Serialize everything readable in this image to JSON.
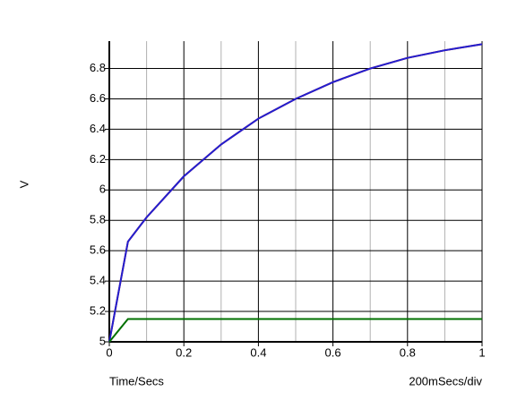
{
  "chart_data": {
    "type": "line",
    "x_label": "Time/Secs",
    "x_scale_label": "200mSecs/div",
    "y_label": "V",
    "x": [
      0,
      0.05,
      0.1,
      0.2,
      0.3,
      0.4,
      0.5,
      0.6,
      0.7,
      0.8,
      0.9,
      1
    ],
    "series": [
      {
        "color": "#e00000",
        "values": [
          5,
          5.66,
          5.82,
          6.09,
          6.3,
          6.47,
          6.6,
          6.71,
          6.8,
          6.87,
          6.92,
          6.96
        ]
      },
      {
        "color": "#2020d0",
        "values": [
          5,
          5.66,
          5.82,
          6.09,
          6.3,
          6.47,
          6.6,
          6.71,
          6.8,
          6.87,
          6.92,
          6.96
        ]
      },
      {
        "color": "#007000",
        "values": [
          5,
          5.15,
          5.15,
          5.15,
          5.15,
          5.15,
          5.15,
          5.15,
          5.15,
          5.15,
          5.15,
          5.15
        ]
      }
    ],
    "xlim": [
      0,
      1
    ],
    "ylim": [
      5,
      6.98
    ],
    "xticks": [
      0,
      0.2,
      0.4,
      0.6,
      0.8,
      1
    ],
    "x_minor_ticks": [
      0.1,
      0.3,
      0.5,
      0.7,
      0.9
    ],
    "yticks": [
      5,
      5.2,
      5.4,
      5.6,
      5.8,
      6,
      6.2,
      6.4,
      6.6,
      6.8
    ],
    "grid": true
  }
}
